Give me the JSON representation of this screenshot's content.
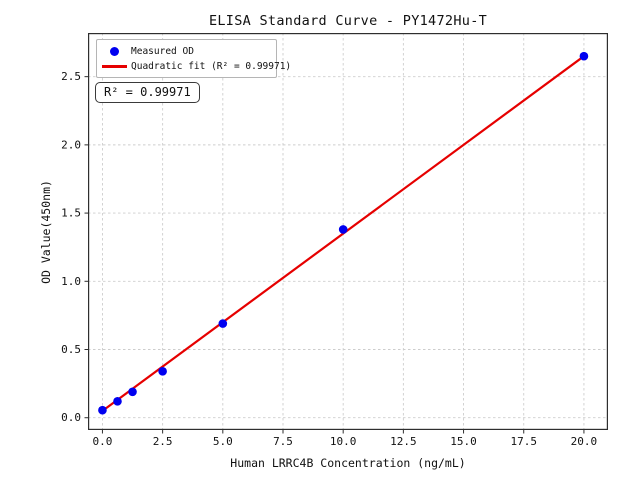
{
  "style": {
    "background": "#ffffff",
    "frame_color": "#2e2e2e",
    "grid_color": "#cdcdcd",
    "text_color": "#111111",
    "point_color": "#0000f0",
    "fit_line_color": "#e60000"
  },
  "chart": {
    "title": "ELISA Standard Curve - PY1472Hu-T",
    "xlabel": "Human LRRC4B Concentration (ng/mL)",
    "ylabel": "OD Value(450nm)",
    "annotation": "R² = 0.99971",
    "legend": [
      {
        "marker": "dot",
        "label": "Measured OD"
      },
      {
        "marker": "line",
        "label": "Quadratic fit (R² = 0.99971)"
      }
    ]
  },
  "chart_data": {
    "type": "scatter",
    "title": "ELISA Standard Curve - PY1472Hu-T",
    "xlabel": "Human LRRC4B Concentration (ng/mL)",
    "ylabel": "OD Value(450nm)",
    "grid": true,
    "legend_position": "upper left",
    "r_squared": 0.99971,
    "xlim": [
      -0.6,
      21.0
    ],
    "ylim": [
      -0.09,
      2.82
    ],
    "xticks": {
      "values": [
        0,
        2.5,
        5,
        7.5,
        10,
        12.5,
        15,
        17.5,
        20
      ],
      "labels": [
        "0.0",
        "2.5",
        "5.0",
        "7.5",
        "10.0",
        "12.5",
        "15.0",
        "17.5",
        "20.0"
      ]
    },
    "yticks": {
      "values": [
        0,
        0.5,
        1.0,
        1.5,
        2.0,
        2.5
      ],
      "labels": [
        "0.0",
        "0.5",
        "1.0",
        "1.5",
        "2.0",
        "2.5"
      ]
    },
    "series": [
      {
        "name": "Measured OD",
        "kind": "scatter",
        "color": "#0000f0",
        "x": [
          0,
          0.625,
          1.25,
          2.5,
          5,
          10,
          20
        ],
        "y": [
          0.055,
          0.12,
          0.19,
          0.34,
          0.69,
          1.38,
          2.65
        ]
      },
      {
        "name": "Quadratic fit (R² = 0.99971)",
        "kind": "line",
        "color": "#e60000",
        "x": [
          0,
          20
        ],
        "y": [
          0.05,
          2.65
        ]
      }
    ]
  }
}
